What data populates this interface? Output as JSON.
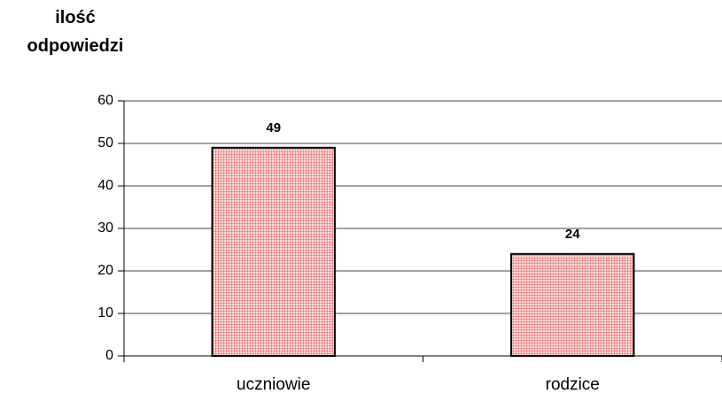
{
  "chart_data": {
    "type": "bar",
    "y_label": "ilość odpowiedzi",
    "categories": [
      "uczniowie",
      "rodzice"
    ],
    "values": [
      49,
      24
    ],
    "color": "#f08080",
    "ylim": [
      0,
      60
    ],
    "yticks": [
      0,
      10,
      20,
      30,
      40,
      50,
      60
    ],
    "grid": true
  }
}
